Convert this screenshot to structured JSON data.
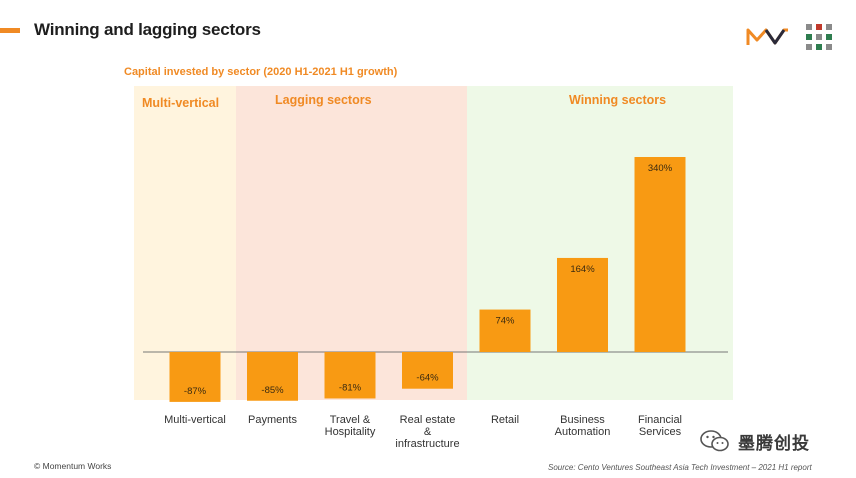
{
  "header": {
    "title": "Winning and lagging sectors"
  },
  "zones": {
    "multi_vertical": "Multi-vertical",
    "lagging": "Lagging sectors",
    "winning": "Winning sectors"
  },
  "colors": {
    "accent": "#f08a24",
    "bar": "#f89a13",
    "zone_multi": "#fff4de",
    "zone_lagging": "#fce5da",
    "zone_winning": "#eef9e7"
  },
  "chart_data": {
    "type": "bar",
    "title": "Capital invested by sector (2020 H1-2021 H1 growth)",
    "categories": [
      "Multi-vertical",
      "Payments",
      "Travel &\nHospitality",
      "Real estate\n&\ninfrastructure",
      "Retail",
      "Business\nAutomation",
      "Financial\nServices"
    ],
    "values": [
      -87,
      -85,
      -81,
      -64,
      74,
      164,
      340
    ],
    "value_labels": [
      "-87%",
      "-85%",
      "-81%",
      "-64%",
      "74%",
      "164%",
      "340%"
    ],
    "xlabel": "",
    "ylabel": "",
    "ylim": [
      -100,
      340
    ],
    "grid": false,
    "legend": "none"
  },
  "footer": {
    "copyright": "© Momentum Works",
    "source": "Source: Cento Ventures Southeast Asia Tech Investment – 2021 H1 report",
    "wechat": "墨腾创投"
  }
}
